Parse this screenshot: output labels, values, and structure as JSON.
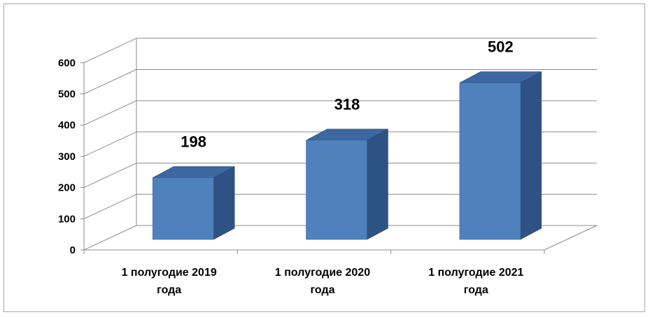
{
  "chart_data": {
    "type": "bar",
    "categories": [
      [
        "1 полугодие 2019",
        "года"
      ],
      [
        "1 полугодие 2020",
        "года"
      ],
      [
        "1 полугодие 2021",
        "года"
      ]
    ],
    "values": [
      198,
      318,
      502
    ],
    "data_labels": [
      "198",
      "318",
      "502"
    ],
    "y_ticks": [
      "0",
      "100",
      "200",
      "300",
      "400",
      "500",
      "600"
    ],
    "ylim": [
      0,
      600
    ],
    "grid": true,
    "legend": "none",
    "three_d": true,
    "colors": {
      "bar_front": "#4f81bd",
      "bar_side": "#2f5285",
      "bar_top": "#3c67a0",
      "grid": "#8c8c8c",
      "axis": "#8c8c8c"
    }
  }
}
